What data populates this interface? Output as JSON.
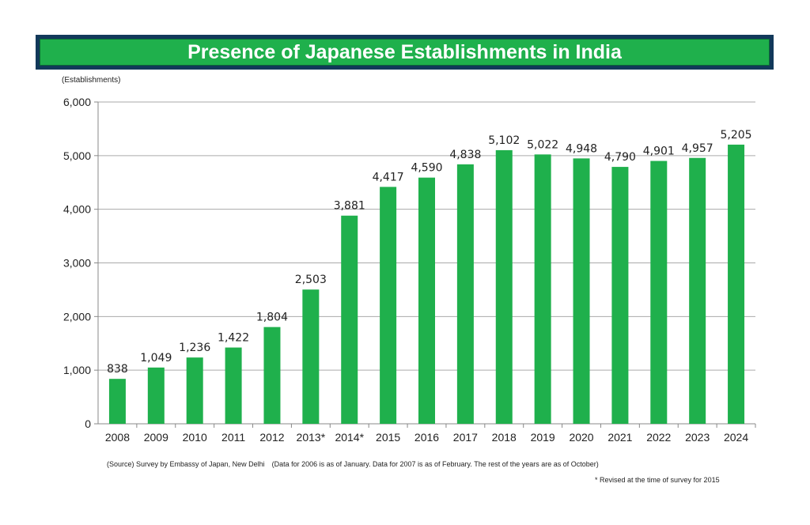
{
  "chart_data": {
    "type": "bar",
    "title": "Presence of Japanese Establishments in India",
    "ylabel": "(Establishments)",
    "xlabel": "",
    "categories": [
      "2008",
      "2009",
      "2010",
      "2011",
      "2012",
      "2013*",
      "2014*",
      "2015",
      "2016",
      "2017",
      "2018",
      "2019",
      "2020",
      "2021",
      "2022",
      "2023",
      "2024"
    ],
    "values": [
      838,
      1049,
      1236,
      1422,
      1804,
      2503,
      3881,
      4417,
      4590,
      4838,
      5102,
      5022,
      4948,
      4790,
      4901,
      4957,
      5205
    ],
    "value_labels": [
      "838",
      "1,049",
      "1,236",
      "1,422",
      "1,804",
      "2,503",
      "3,881",
      "4,417",
      "4,590",
      "4,838",
      "5,102",
      "5,022",
      "4,948",
      "4,790",
      "4,901",
      "4,957",
      "5,205"
    ],
    "ylim": [
      0,
      6000
    ],
    "yticks": [
      0,
      1000,
      2000,
      3000,
      4000,
      5000,
      6000
    ],
    "ytick_labels": [
      "0",
      "1,000",
      "2,000",
      "3,000",
      "4,000",
      "5,000",
      "6,000"
    ],
    "grid": true,
    "bar_color": "#1fb04c",
    "source": "(Source) Survey by Embassy of Japan, New Delhi　(Data for 2006 is as of January. Data for 2007 is as of February. The rest of the years are as of October)",
    "footnote": "* Revised at the time of survey for 2015"
  }
}
